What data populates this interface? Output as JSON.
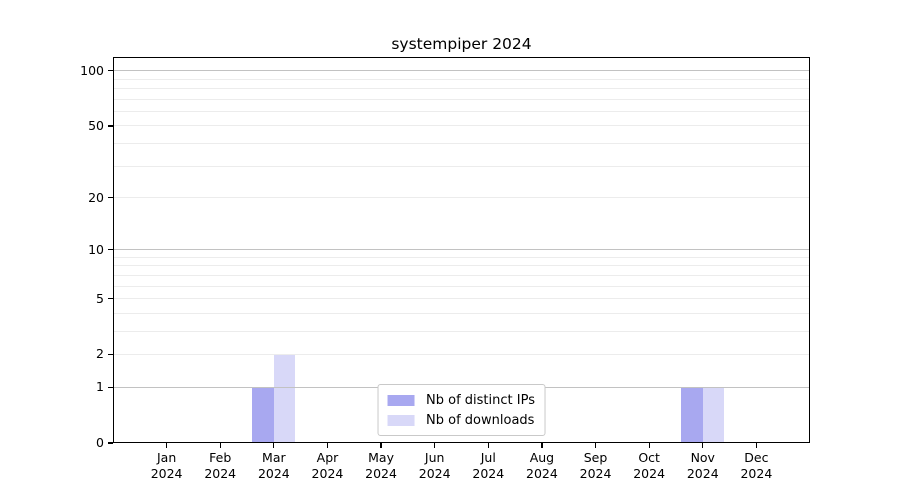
{
  "title": "systempiper 2024",
  "chart_data": {
    "type": "bar",
    "title": "systempiper 2024",
    "categories": [
      "Jan 2024",
      "Feb 2024",
      "Mar 2024",
      "Apr 2024",
      "May 2024",
      "Jun 2024",
      "Jul 2024",
      "Aug 2024",
      "Sep 2024",
      "Oct 2024",
      "Nov 2024",
      "Dec 2024"
    ],
    "x_tick_month": [
      "Jan",
      "Feb",
      "Mar",
      "Apr",
      "May",
      "Jun",
      "Jul",
      "Aug",
      "Sep",
      "Oct",
      "Nov",
      "Dec"
    ],
    "x_tick_year": "2024",
    "series": [
      {
        "name": "Nb of distinct IPs",
        "color": "#a8a8f0",
        "values": [
          0,
          0,
          1,
          0,
          0,
          0,
          0,
          0,
          0,
          0,
          1,
          0
        ]
      },
      {
        "name": "Nb of downloads",
        "color": "#d8d8f8",
        "values": [
          0,
          0,
          2,
          0,
          0,
          0,
          0,
          0,
          0,
          0,
          1,
          0
        ]
      }
    ],
    "xlabel": "",
    "ylabel": "",
    "y_scale": "log10(1+y)",
    "y_ticks": [
      0,
      1,
      2,
      5,
      10,
      20,
      50,
      100
    ],
    "y_major_gridlines": [
      1,
      10,
      100
    ],
    "y_minor_gridlines": [
      2,
      3,
      4,
      5,
      6,
      7,
      8,
      9,
      20,
      30,
      40,
      50,
      60,
      70,
      80,
      90
    ],
    "ylim": [
      0,
      119
    ],
    "grid": "horizontal",
    "legend_position": "lower center inside"
  }
}
